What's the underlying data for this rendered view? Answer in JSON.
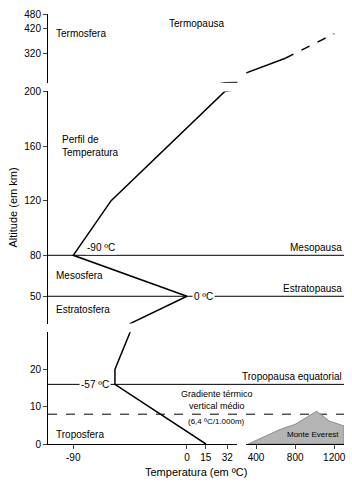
{
  "chart_data": {
    "type": "line",
    "x_label": "Temperatura (em ºC)",
    "y_label": "Altitude (em km)",
    "xlim": [
      [
        -110,
        40
      ],
      [
        300,
        1300
      ]
    ],
    "ylim": [
      [
        0,
        30
      ],
      [
        30,
        200
      ],
      [
        200,
        480
      ]
    ],
    "xticks": [
      -90,
      0,
      15,
      32,
      400,
      800,
      1200
    ],
    "yticks": [
      0,
      10,
      20,
      50,
      80,
      120,
      160,
      200,
      320,
      420,
      480
    ],
    "grid": false,
    "series": [
      {
        "name": "Perfil de\nTemperatura",
        "color": "#000000",
        "line_style": "solid",
        "x": [
          15,
          -57,
          -57,
          -45,
          0,
          -90,
          -60,
          30,
          700
        ],
        "values": [
          0,
          16,
          20,
          30,
          50,
          80,
          120,
          200,
          300
        ]
      },
      {
        "color": "#000000",
        "line_style": "dashed",
        "x": [
          700,
          1200
        ],
        "values": [
          300,
          400
        ]
      }
    ],
    "layers": [
      "Termosfera",
      "Mesosfera",
      "Estratosfera",
      "Troposfera"
    ],
    "reference_lines": [
      {
        "y": 480,
        "label": "Termopausa",
        "line_style": "none"
      },
      {
        "y": 80,
        "label": "Mesopausa",
        "line_style": "solid"
      },
      {
        "y": 50,
        "label": "Estratopausa",
        "line_style": "solid"
      },
      {
        "y": 16,
        "label": "Tropopausa equatorial",
        "line_style": "solid"
      },
      {
        "y": 8,
        "label": "Gradiente térmico\nvertical médio",
        "sublabel": "(6,4 ºC/1.000m)",
        "line_style": "dashed"
      }
    ],
    "point_labels": [
      {
        "text": "-90 ºC",
        "x": -90,
        "y": 80
      },
      {
        "text": "0 ºC",
        "x": 0,
        "y": 50
      },
      {
        "text": "-57 ºC",
        "x": -57,
        "y": 16
      }
    ],
    "landmark": {
      "label": "Monte Everest",
      "altitude": 8.8
    }
  }
}
